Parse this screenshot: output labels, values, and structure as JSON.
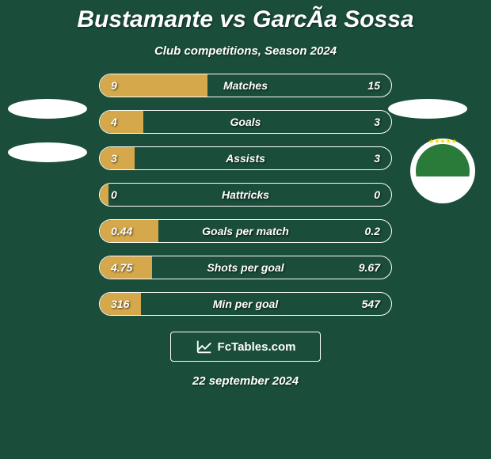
{
  "title": "Bustamante vs GarcÃa Sossa",
  "subtitle": "Club competitions, Season 2024",
  "date": "22 september 2024",
  "watermark": "FcTables.com",
  "colors": {
    "background": "#1a4d3a",
    "bar_left": "#d4a84b",
    "bar_right": "#d4a84b",
    "text": "#ffffff",
    "border": "#ffffff"
  },
  "stats": [
    {
      "label": "Matches",
      "left_value": "9",
      "right_value": "15",
      "left_pct": 37,
      "right_pct": 0
    },
    {
      "label": "Goals",
      "left_value": "4",
      "right_value": "3",
      "left_pct": 15,
      "right_pct": 0
    },
    {
      "label": "Assists",
      "left_value": "3",
      "right_value": "3",
      "left_pct": 12,
      "right_pct": 0
    },
    {
      "label": "Hattricks",
      "left_value": "0",
      "right_value": "0",
      "left_pct": 3,
      "right_pct": 0
    },
    {
      "label": "Goals per match",
      "left_value": "0.44",
      "right_value": "0.2",
      "left_pct": 20,
      "right_pct": 0
    },
    {
      "label": "Shots per goal",
      "left_value": "4.75",
      "right_value": "9.67",
      "left_pct": 18,
      "right_pct": 0
    },
    {
      "label": "Min per goal",
      "left_value": "316",
      "right_value": "547",
      "left_pct": 14,
      "right_pct": 0
    }
  ],
  "typography": {
    "title_fontsize": 30,
    "subtitle_fontsize": 15,
    "stat_fontsize": 14,
    "date_fontsize": 15
  }
}
